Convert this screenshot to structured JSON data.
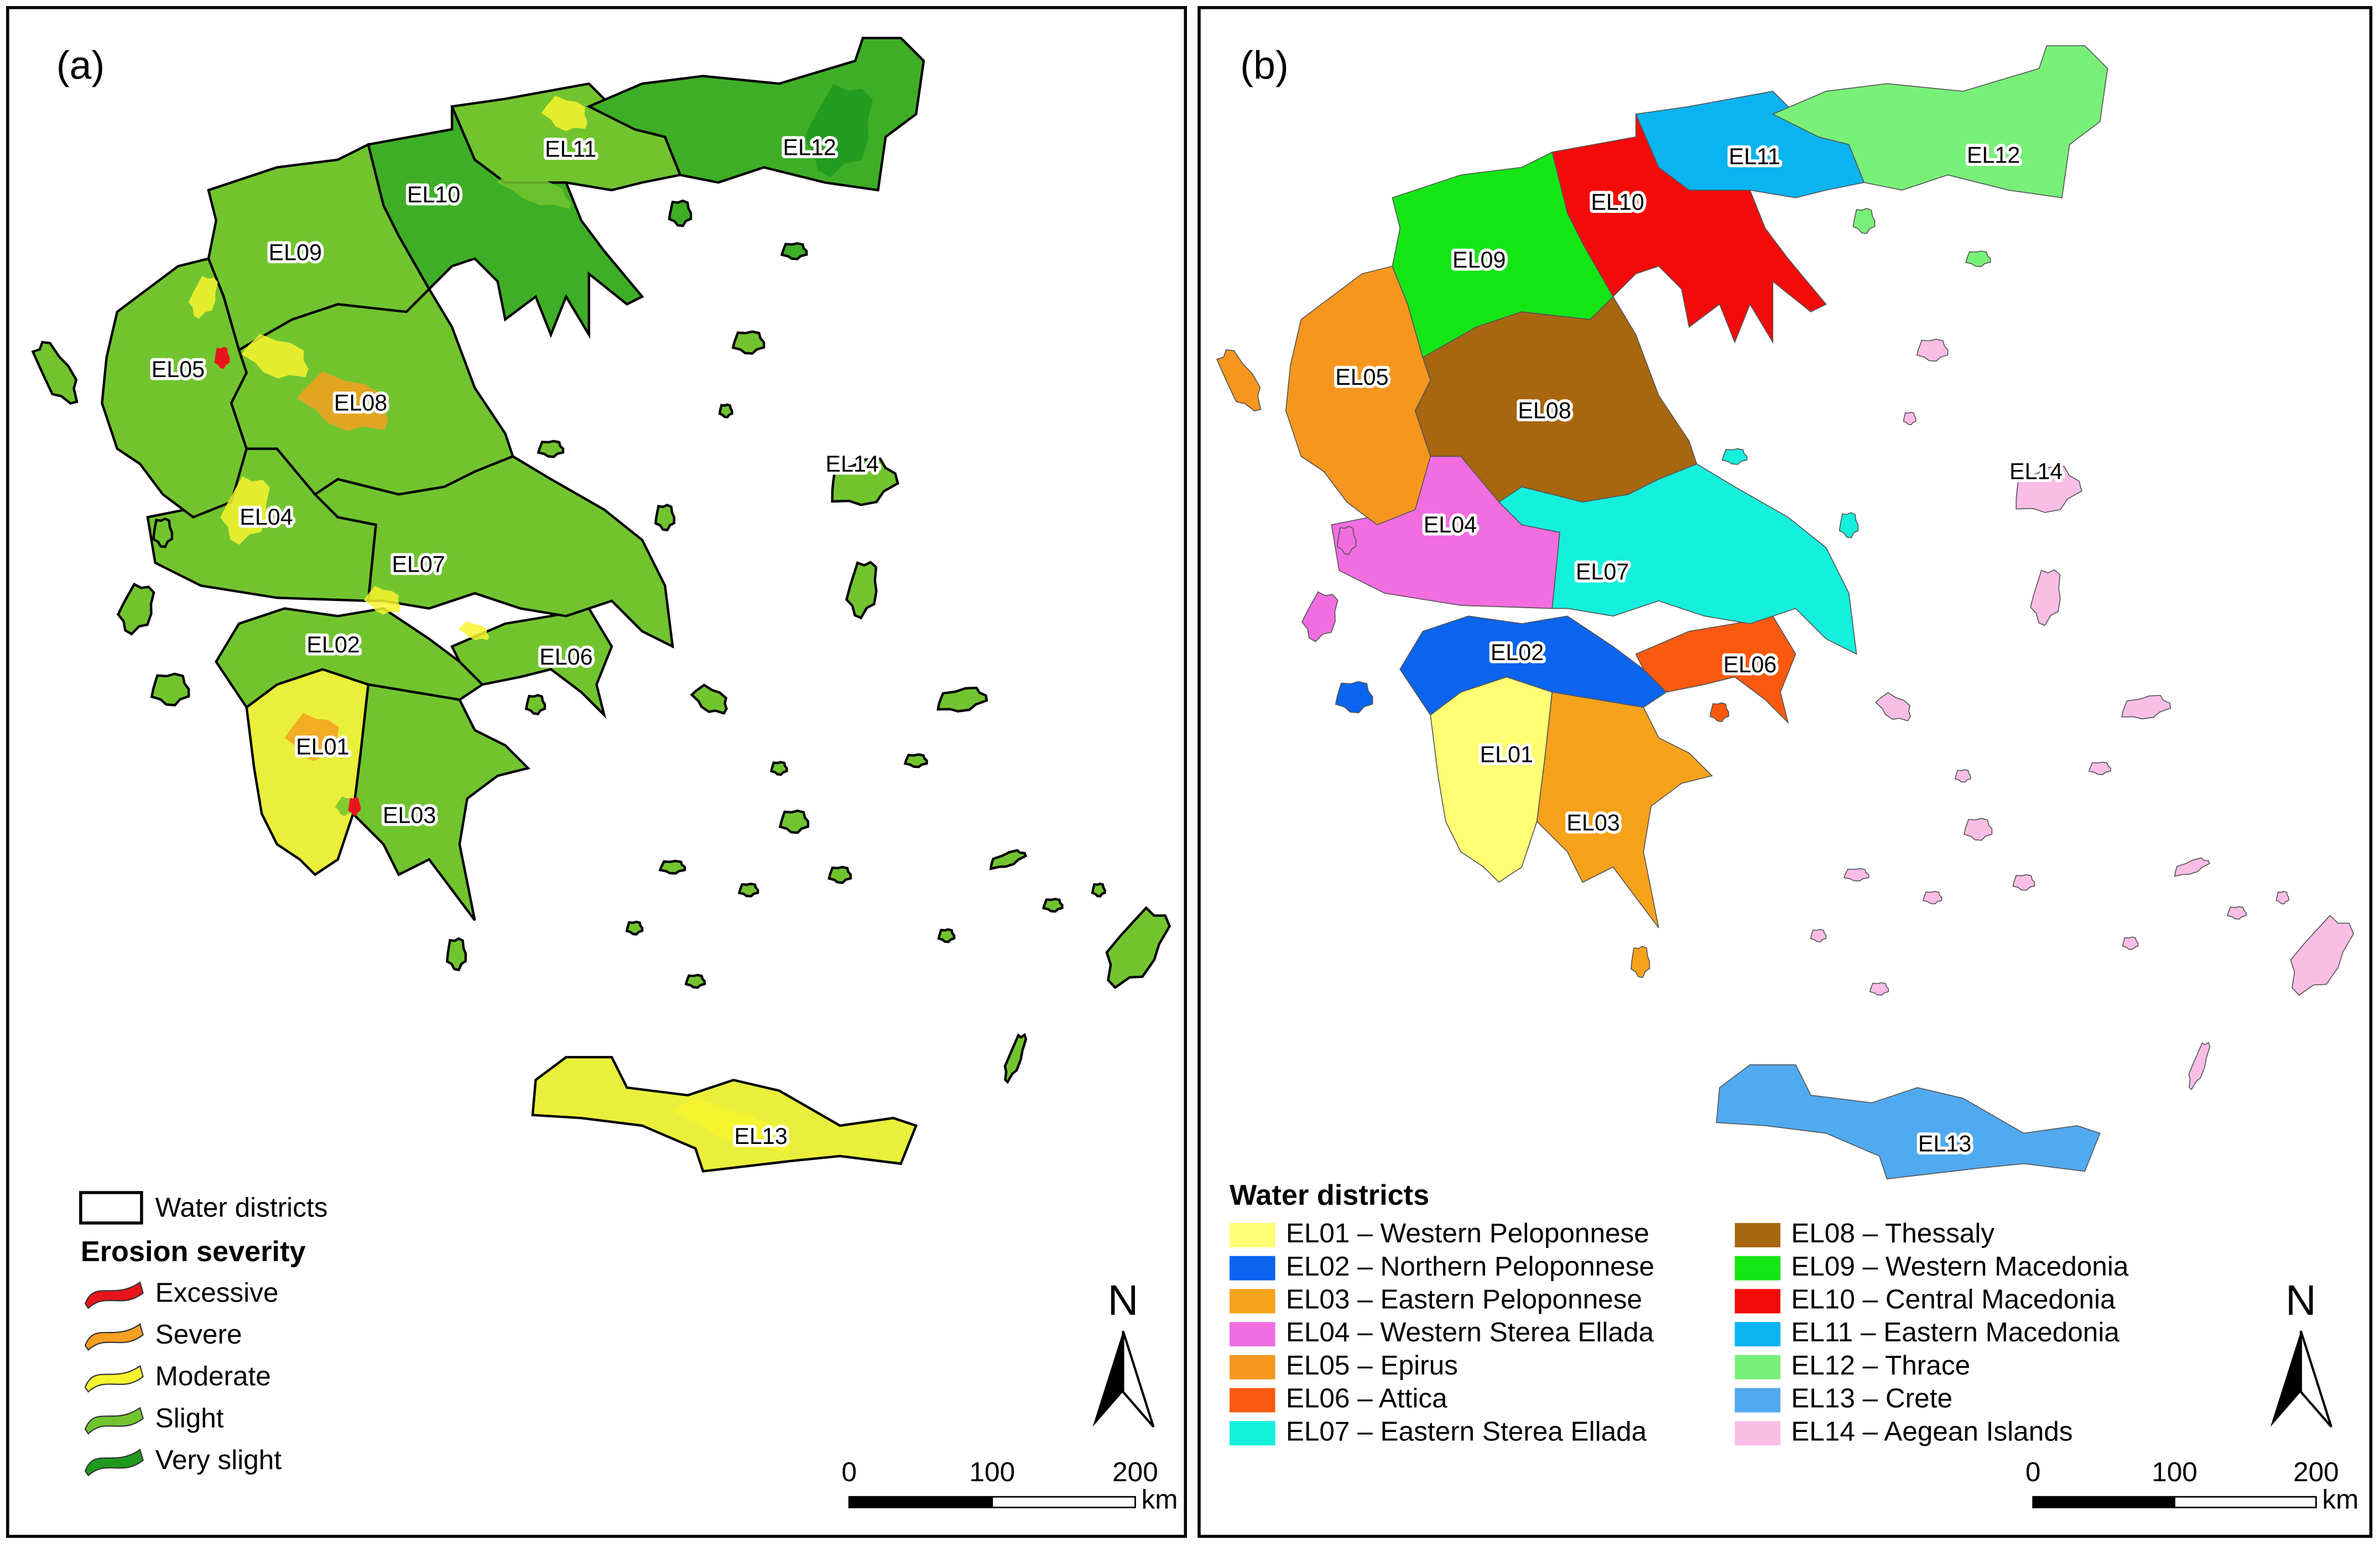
{
  "panels": [
    {
      "label": "(a)",
      "districts": [
        {
          "code": "EL01"
        },
        {
          "code": "EL02"
        },
        {
          "code": "EL03"
        },
        {
          "code": "EL04"
        },
        {
          "code": "EL05"
        },
        {
          "code": "EL06"
        },
        {
          "code": "EL07"
        },
        {
          "code": "EL08"
        },
        {
          "code": "EL09"
        },
        {
          "code": "EL10"
        },
        {
          "code": "EL11"
        },
        {
          "code": "EL12"
        },
        {
          "code": "EL13"
        },
        {
          "code": "EL14"
        }
      ],
      "legend": {
        "outline_item": "Water districts",
        "title": "Erosion severity",
        "items": [
          {
            "label": "Excessive",
            "color": "#e8141c"
          },
          {
            "label": "Severe",
            "color": "#f5a020"
          },
          {
            "label": "Moderate",
            "color": "#f7f52e"
          },
          {
            "label": "Slight",
            "color": "#72c42f"
          },
          {
            "label": "Very slight",
            "color": "#1f9a1f"
          }
        ]
      },
      "scale_bar": {
        "ticks": [
          0,
          100,
          200
        ],
        "unit": "km"
      },
      "north": "N"
    },
    {
      "label": "(b)",
      "districts": [
        {
          "code": "EL01"
        },
        {
          "code": "EL02"
        },
        {
          "code": "EL03"
        },
        {
          "code": "EL04"
        },
        {
          "code": "EL05"
        },
        {
          "code": "EL06"
        },
        {
          "code": "EL07"
        },
        {
          "code": "EL08"
        },
        {
          "code": "EL09"
        },
        {
          "code": "EL10"
        },
        {
          "code": "EL11"
        },
        {
          "code": "EL12"
        },
        {
          "code": "EL13"
        },
        {
          "code": "EL14"
        }
      ],
      "legend": {
        "title": "Water districts",
        "items": [
          {
            "label": "EL01 – Western Peloponnese",
            "color": "#ffff73"
          },
          {
            "label": "EL02 – Northern Peloponnese",
            "color": "#0a64f0"
          },
          {
            "label": "EL03 – Eastern Peloponnese",
            "color": "#f7a21b"
          },
          {
            "label": "EL04 – Western Sterea Ellada",
            "color": "#f26de0"
          },
          {
            "label": "EL05 – Epirus",
            "color": "#f7961e"
          },
          {
            "label": "EL06 – Attica",
            "color": "#fa5a0f"
          },
          {
            "label": "EL07 – Eastern Sterea Ellada",
            "color": "#14f0dc"
          },
          {
            "label": "EL08 – Thessaly",
            "color": "#a8660f"
          },
          {
            "label": "EL09 – Western Macedonia",
            "color": "#14e614"
          },
          {
            "label": "EL10 – Central Macedonia",
            "color": "#f50a0a"
          },
          {
            "label": "EL11 – Eastern Macedonia",
            "color": "#0ab4f0"
          },
          {
            "label": "EL12 – Thrace",
            "color": "#78f078"
          },
          {
            "label": "EL13 – Crete",
            "color": "#50aaf0"
          },
          {
            "label": "EL14 – Aegean Islands",
            "color": "#fabee6"
          }
        ]
      },
      "scale_bar": {
        "ticks": [
          0,
          100,
          200
        ],
        "unit": "km"
      },
      "north": "N"
    }
  ]
}
